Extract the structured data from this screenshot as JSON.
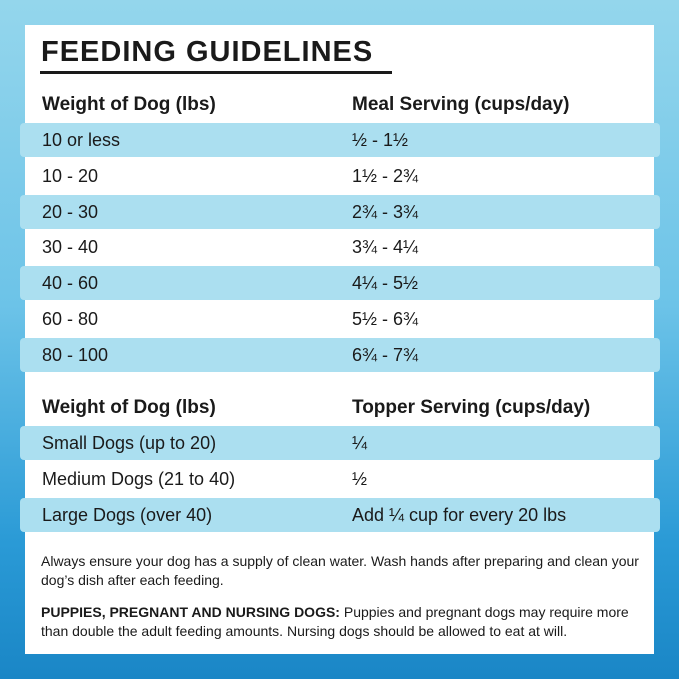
{
  "title": "FEEDING GUIDELINES",
  "tables": [
    {
      "headers": [
        "Weight of Dog (lbs)",
        "Meal Serving (cups/day)"
      ],
      "rows": [
        [
          "10 or less",
          "½ - 1½"
        ],
        [
          "10 - 20",
          "1½ - 2¾"
        ],
        [
          "20 - 30",
          "2¾ - 3¾"
        ],
        [
          "30 - 40",
          "3¾ - 4¼"
        ],
        [
          "40 - 60",
          "4¼ - 5½"
        ],
        [
          "60 - 80",
          "5½ - 6¾"
        ],
        [
          "80 - 100",
          "6¾ - 7¾"
        ]
      ]
    },
    {
      "headers": [
        "Weight of Dog (lbs)",
        "Topper Serving (cups/day)"
      ],
      "rows": [
        [
          "Small Dogs (up to 20)",
          "¼"
        ],
        [
          "Medium Dogs (21 to 40)",
          "½"
        ],
        [
          "Large Dogs (over 40)",
          "Add ¼ cup for every 20 lbs"
        ]
      ]
    }
  ],
  "notes": {
    "general": "Always ensure your dog has a supply of clean water. Wash hands after preparing and clean your dog’s dish after each feeding.",
    "special": {
      "label": "PUPPIES, PREGNANT AND NURSING DOGS:",
      "text": "Puppies and pregnant dogs may require more than double the adult feeding amounts. Nursing dogs should be allowed to eat at will."
    }
  }
}
